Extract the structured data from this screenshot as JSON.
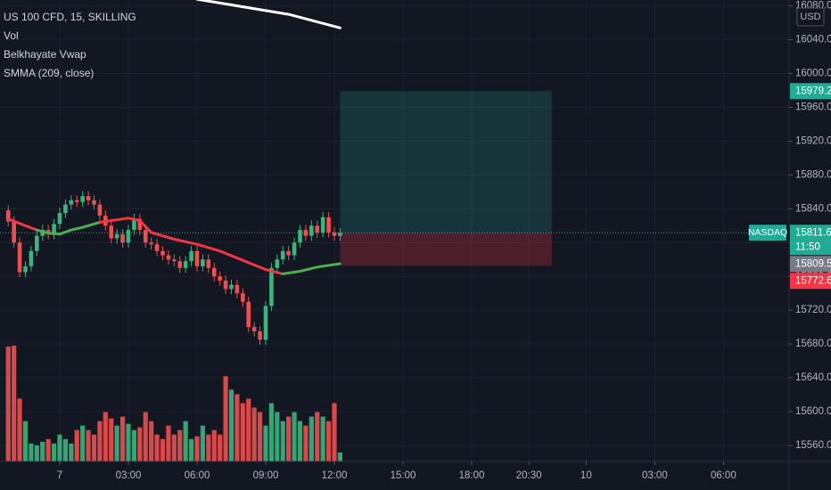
{
  "chart_data": {
    "type": "candlestick",
    "title": "US 100 CFD, 15, SKILLING",
    "indicators": [
      "Vol",
      "Belkhayate Vwap",
      "SMMA (209, close)"
    ],
    "currency": "USD",
    "up_color": "#3fb37f",
    "down_color": "#ef4f4f",
    "xlim": [
      -2.61,
      31.87
    ],
    "ylim": [
      15541,
      16087
    ],
    "xticks": [
      {
        "value": 0,
        "label": "7"
      },
      {
        "value": 3,
        "label": "03:00"
      },
      {
        "value": 6,
        "label": "06:00"
      },
      {
        "value": 9,
        "label": "09:00"
      },
      {
        "value": 12,
        "label": "12:00"
      },
      {
        "value": 15,
        "label": "15:00"
      },
      {
        "value": 18,
        "label": "18:00"
      },
      {
        "value": 20.5,
        "label": "20:30"
      },
      {
        "value": 23,
        "label": "10"
      },
      {
        "value": 26,
        "label": "03:00"
      },
      {
        "value": 29,
        "label": "06:00"
      }
    ],
    "yticks": [
      {
        "value": 15560,
        "label": "15560.0"
      },
      {
        "value": 15600,
        "label": "15600.0"
      },
      {
        "value": 15640,
        "label": "15640.0"
      },
      {
        "value": 15680,
        "label": "15680.0"
      },
      {
        "value": 15720,
        "label": "15720.0"
      },
      {
        "value": 15760,
        "label": "15760.0"
      },
      {
        "value": 15800,
        "label": "15800.0"
      },
      {
        "value": 15840,
        "label": "15840.0"
      },
      {
        "value": 15880,
        "label": "15880.0"
      },
      {
        "value": 15920,
        "label": "15920.0"
      },
      {
        "value": 15960,
        "label": "15960.0"
      },
      {
        "value": 16000,
        "label": "16000.0"
      },
      {
        "value": 16040,
        "label": "16040.0"
      },
      {
        "value": 16080,
        "label": "16080.0"
      }
    ],
    "grid": true,
    "x": [
      -2.25,
      -2,
      -1.75,
      -1.5,
      -1.25,
      -1,
      -0.75,
      -0.5,
      -0.25,
      0,
      0.25,
      0.5,
      0.75,
      1,
      1.25,
      1.5,
      1.75,
      2,
      2.25,
      2.5,
      2.75,
      3,
      3.25,
      3.5,
      3.75,
      4,
      4.25,
      4.5,
      4.75,
      5,
      5.25,
      5.5,
      5.75,
      6,
      6.25,
      6.5,
      6.75,
      7,
      7.25,
      7.5,
      7.75,
      8,
      8.25,
      8.5,
      8.75,
      9,
      9.25,
      9.5,
      9.75,
      10,
      10.25,
      10.5,
      10.75,
      11,
      11.25,
      11.5,
      11.75,
      12,
      12.25
    ],
    "open": [
      15838,
      15825,
      15800,
      15765,
      15772,
      15790,
      15808,
      15815,
      15810,
      15822,
      15835,
      15845,
      15850,
      15848,
      15855,
      15850,
      15845,
      15832,
      15820,
      15805,
      15810,
      15800,
      15815,
      15828,
      15815,
      15800,
      15798,
      15790,
      15785,
      15780,
      15778,
      15770,
      15778,
      15790,
      15772,
      15780,
      15770,
      15760,
      15755,
      15745,
      15750,
      15740,
      15730,
      15700,
      15695,
      15685,
      15725,
      15770,
      15780,
      15790,
      15785,
      15800,
      15815,
      15808,
      15820,
      15812,
      15830,
      15812,
      15808
    ],
    "high": [
      15844,
      15831,
      15806,
      15778,
      15796,
      15814,
      15821,
      15821,
      15828,
      15841,
      15851,
      15856,
      15856,
      15861,
      15861,
      15856,
      15851,
      15838,
      15826,
      15816,
      15816,
      15821,
      15834,
      15834,
      15821,
      15806,
      15804,
      15796,
      15791,
      15786,
      15784,
      15784,
      15796,
      15796,
      15786,
      15786,
      15776,
      15766,
      15761,
      15756,
      15756,
      15746,
      15736,
      15706,
      15701,
      15731,
      15776,
      15786,
      15796,
      15796,
      15806,
      15821,
      15821,
      15826,
      15826,
      15836,
      15836,
      15818,
      15817
    ],
    "low": [
      15819,
      15794,
      15759,
      15759,
      15766,
      15784,
      15802,
      15804,
      15804,
      15816,
      15829,
      15839,
      15842,
      15842,
      15844,
      15839,
      15826,
      15814,
      15799,
      15799,
      15794,
      15794,
      15809,
      15809,
      15794,
      15792,
      15784,
      15779,
      15774,
      15772,
      15764,
      15764,
      15772,
      15766,
      15766,
      15764,
      15754,
      15749,
      15739,
      15739,
      15734,
      15724,
      15694,
      15689,
      15679,
      15679,
      15719,
      15764,
      15774,
      15779,
      15779,
      15794,
      15802,
      15802,
      15806,
      15806,
      15806,
      15802,
      15802
    ],
    "close": [
      15825,
      15800,
      15765,
      15772,
      15790,
      15808,
      15815,
      15810,
      15822,
      15835,
      15845,
      15850,
      15848,
      15855,
      15850,
      15845,
      15832,
      15820,
      15805,
      15810,
      15800,
      15815,
      15828,
      15815,
      15800,
      15798,
      15790,
      15785,
      15780,
      15778,
      15770,
      15778,
      15790,
      15772,
      15780,
      15770,
      15760,
      15755,
      15745,
      15750,
      15740,
      15730,
      15700,
      15695,
      15685,
      15725,
      15770,
      15780,
      15790,
      15785,
      15800,
      15815,
      15808,
      15820,
      15812,
      15830,
      15812,
      15808,
      15811.6
    ],
    "volume": [
      128,
      129,
      70,
      45,
      20,
      18,
      22,
      25,
      20,
      30,
      25,
      20,
      35,
      40,
      35,
      30,
      45,
      55,
      48,
      40,
      50,
      42,
      35,
      38,
      55,
      45,
      30,
      25,
      40,
      30,
      35,
      45,
      25,
      28,
      40,
      30,
      35,
      30,
      95,
      80,
      75,
      65,
      70,
      60,
      55,
      40,
      65,
      55,
      45,
      50,
      55,
      45,
      40,
      50,
      55,
      50,
      45,
      65,
      10
    ],
    "vlim": [
      0,
      130
    ],
    "ma_lines": [
      {
        "color": "#f23645",
        "x": [
          -2.25,
          -1.5,
          -1
        ],
        "values": [
          15828,
          15820,
          15815
        ]
      },
      {
        "color": "#4caf50",
        "x": [
          -1,
          -0.5,
          0,
          0.5,
          1,
          1.75
        ],
        "values": [
          15815,
          15811,
          15810,
          15815,
          15818,
          15824
        ]
      },
      {
        "color": "#f23645",
        "x": [
          1.75,
          2.5,
          3,
          3.5,
          4,
          5,
          6,
          7,
          8,
          9,
          9.75
        ],
        "values": [
          15824,
          15827,
          15829,
          15826,
          15812,
          15804,
          15798,
          15790,
          15779,
          15768,
          15763
        ]
      },
      {
        "color": "#4caf50",
        "x": [
          9.75,
          10.5,
          11.25,
          12.25
        ],
        "values": [
          15763,
          15766,
          15771,
          15775
        ]
      },
      {
        "color": "#ffffff",
        "x": [
          6,
          8,
          10,
          12.25
        ],
        "values": [
          16088,
          16079,
          16070,
          16054
        ]
      }
    ],
    "position": {
      "x": [
        12.25,
        21.5
      ],
      "entry": 15811.6,
      "target": 15979.2,
      "stop": 15772.6
    },
    "price_labels": [
      {
        "value": 15979.2,
        "color": "#22ab94"
      },
      {
        "value": 15811.6,
        "color": "#22ab94",
        "countdown": "11:50",
        "tag": "NASDAQ"
      },
      {
        "value": 15809.5,
        "color": "#787b86"
      },
      {
        "value": 15772.6,
        "color": "#f23645"
      }
    ]
  }
}
